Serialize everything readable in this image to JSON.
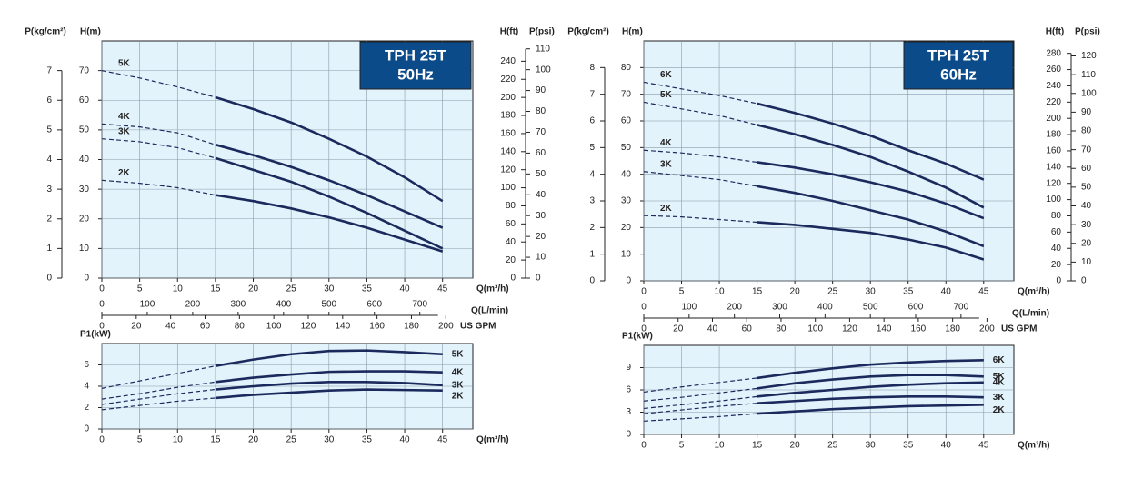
{
  "chart_data": [
    {
      "type": "line",
      "title": "TPH 25T",
      "subtitle": "50Hz",
      "xlabel": "Q(m³/h)",
      "ylabel": "H(m)",
      "x": [
        0,
        5,
        10,
        15,
        20,
        25,
        30,
        35,
        40,
        45
      ],
      "xlim": [
        0,
        49
      ],
      "xticks": [
        0,
        5,
        10,
        15,
        20,
        25,
        30,
        35,
        40,
        45
      ],
      "ylim": [
        0,
        80
      ],
      "yticks": [
        0,
        10,
        20,
        30,
        40,
        50,
        60,
        70
      ],
      "grid": true,
      "dashed_below_x": 15,
      "series": [
        {
          "name": "5K",
          "color": "#1b2a5c",
          "values": [
            70,
            67.5,
            64.5,
            61,
            57,
            52.5,
            47,
            41,
            34,
            26
          ]
        },
        {
          "name": "4K",
          "color": "#1b2a5c",
          "values": [
            52,
            51,
            49,
            45,
            41.5,
            37.5,
            33,
            28,
            22.5,
            17
          ]
        },
        {
          "name": "3K",
          "color": "#1b2a5c",
          "values": [
            47,
            46,
            44,
            40.5,
            36.5,
            32.5,
            27.5,
            22,
            16,
            10
          ]
        },
        {
          "name": "2K",
          "color": "#1b2a5c",
          "values": [
            33,
            32,
            30.5,
            28,
            26,
            23.5,
            20.5,
            17,
            13,
            9
          ]
        }
      ],
      "extra_axes": [
        {
          "label": "P(kg/cm²)",
          "side": "left",
          "lim": [
            0,
            8
          ],
          "ticks": [
            0,
            1,
            2,
            3,
            4,
            5,
            6,
            7
          ]
        },
        {
          "label": "H(ft)",
          "side": "right",
          "lim": [
            0,
            262.5
          ],
          "ticks": [
            0,
            20,
            40,
            60,
            80,
            100,
            120,
            140,
            160,
            180,
            200,
            220,
            240
          ]
        },
        {
          "label": "P(psi)",
          "side": "right",
          "lim": [
            0,
            113.8
          ],
          "ticks": [
            0,
            10,
            20,
            30,
            40,
            50,
            60,
            70,
            80,
            90,
            100,
            110
          ]
        },
        {
          "label": "Q(L/min)",
          "side": "bottom",
          "lim": [
            0,
            816.7
          ],
          "ticks": [
            0,
            100,
            200,
            300,
            400,
            500,
            600,
            700
          ]
        },
        {
          "label": "US GPM",
          "side": "bottom",
          "lim": [
            0,
            215.7
          ],
          "ticks": [
            0,
            20,
            40,
            60,
            80,
            100,
            120,
            140,
            160,
            180,
            200
          ]
        }
      ]
    },
    {
      "type": "line",
      "xlabel": "Q(m³/h)",
      "ylabel": "P1(kW)",
      "x": [
        0,
        5,
        10,
        15,
        20,
        25,
        30,
        35,
        40,
        45
      ],
      "xlim": [
        0,
        49
      ],
      "xticks": [
        0,
        5,
        10,
        15,
        20,
        25,
        30,
        35,
        40,
        45
      ],
      "ylim": [
        0,
        8
      ],
      "yticks": [
        0,
        2,
        4,
        6
      ],
      "grid": true,
      "dashed_below_x": 15,
      "series": [
        {
          "name": "5K",
          "color": "#1b2a5c",
          "values": [
            3.8,
            4.5,
            5.2,
            5.9,
            6.5,
            7.0,
            7.3,
            7.35,
            7.2,
            7.0
          ]
        },
        {
          "name": "4K",
          "color": "#1b2a5c",
          "values": [
            2.8,
            3.3,
            3.9,
            4.4,
            4.8,
            5.1,
            5.35,
            5.4,
            5.4,
            5.3
          ]
        },
        {
          "name": "3K",
          "color": "#1b2a5c",
          "values": [
            2.3,
            2.8,
            3.3,
            3.7,
            4.0,
            4.25,
            4.4,
            4.4,
            4.3,
            4.1
          ]
        },
        {
          "name": "2K",
          "color": "#1b2a5c",
          "values": [
            1.8,
            2.2,
            2.6,
            2.9,
            3.2,
            3.4,
            3.6,
            3.7,
            3.65,
            3.6
          ]
        }
      ]
    },
    {
      "type": "line",
      "title": "TPH 25T",
      "subtitle": "60Hz",
      "xlabel": "Q(m³/h)",
      "ylabel": "H(m)",
      "x": [
        0,
        5,
        10,
        15,
        20,
        25,
        30,
        35,
        40,
        45
      ],
      "xlim": [
        0,
        49
      ],
      "xticks": [
        0,
        5,
        10,
        15,
        20,
        25,
        30,
        35,
        40,
        45
      ],
      "ylim": [
        0,
        90
      ],
      "yticks": [
        0,
        10,
        20,
        30,
        40,
        50,
        60,
        70,
        80
      ],
      "grid": true,
      "dashed_below_x": 15,
      "series": [
        {
          "name": "6K",
          "color": "#1b2a5c",
          "values": [
            74.5,
            72,
            69.5,
            66.5,
            63,
            59,
            54.5,
            49,
            44,
            38
          ]
        },
        {
          "name": "5K",
          "color": "#1b2a5c",
          "values": [
            67,
            64.5,
            62,
            58.5,
            55,
            51,
            46.5,
            41,
            35,
            27.5
          ]
        },
        {
          "name": "4K",
          "color": "#1b2a5c",
          "values": [
            49,
            48,
            46.5,
            44.5,
            42.5,
            40,
            37,
            33.5,
            29,
            23.5
          ]
        },
        {
          "name": "3K",
          "color": "#1b2a5c",
          "values": [
            41,
            39.5,
            38,
            35.5,
            33,
            30,
            26.5,
            23,
            18.5,
            13
          ]
        },
        {
          "name": "2K",
          "color": "#1b2a5c",
          "values": [
            24.5,
            24,
            23,
            22,
            21,
            19.5,
            18,
            15.5,
            12.5,
            8
          ]
        }
      ],
      "extra_axes": [
        {
          "label": "P(kg/cm²)",
          "side": "left",
          "lim": [
            0,
            9
          ],
          "ticks": [
            0,
            1,
            2,
            3,
            4,
            5,
            6,
            7,
            8
          ]
        },
        {
          "label": "H(ft)",
          "side": "right",
          "lim": [
            0,
            295.3
          ],
          "ticks": [
            0,
            20,
            40,
            60,
            80,
            100,
            120,
            140,
            160,
            180,
            200,
            220,
            240,
            260,
            280
          ]
        },
        {
          "label": "P(psi)",
          "side": "right",
          "lim": [
            0,
            128
          ],
          "ticks": [
            0,
            10,
            20,
            30,
            40,
            50,
            60,
            70,
            80,
            90,
            100,
            110,
            120
          ]
        },
        {
          "label": "Q(L/min)",
          "side": "bottom",
          "lim": [
            0,
            816.7
          ],
          "ticks": [
            0,
            100,
            200,
            300,
            400,
            500,
            600,
            700
          ]
        },
        {
          "label": "US GPM",
          "side": "bottom",
          "lim": [
            0,
            215.7
          ],
          "ticks": [
            0,
            20,
            40,
            60,
            80,
            100,
            120,
            140,
            160,
            180,
            200
          ]
        }
      ]
    },
    {
      "type": "line",
      "xlabel": "Q(m³/h)",
      "ylabel": "P1(kW)",
      "x": [
        0,
        5,
        10,
        15,
        20,
        25,
        30,
        35,
        40,
        45
      ],
      "xlim": [
        0,
        49
      ],
      "xticks": [
        0,
        5,
        10,
        15,
        20,
        25,
        30,
        35,
        40,
        45
      ],
      "ylim": [
        0,
        12
      ],
      "yticks": [
        0,
        3,
        6,
        9
      ],
      "grid": true,
      "dashed_below_x": 15,
      "series": [
        {
          "name": "6K",
          "color": "#1b2a5c",
          "values": [
            5.7,
            6.4,
            7.0,
            7.6,
            8.3,
            8.9,
            9.4,
            9.7,
            9.9,
            10.0
          ]
        },
        {
          "name": "5K",
          "color": "#1b2a5c",
          "values": [
            4.5,
            5.0,
            5.6,
            6.2,
            6.9,
            7.4,
            7.8,
            8.0,
            8.0,
            7.8
          ]
        },
        {
          "name": "4K",
          "color": "#1b2a5c",
          "values": [
            3.5,
            4.0,
            4.5,
            5.1,
            5.6,
            6.0,
            6.4,
            6.7,
            6.9,
            7.0
          ]
        },
        {
          "name": "3K",
          "color": "#1b2a5c",
          "values": [
            2.8,
            3.3,
            3.8,
            4.2,
            4.5,
            4.8,
            5.0,
            5.1,
            5.1,
            5.0
          ]
        },
        {
          "name": "2K",
          "color": "#1b2a5c",
          "values": [
            1.8,
            2.1,
            2.4,
            2.8,
            3.1,
            3.4,
            3.6,
            3.8,
            3.9,
            4.0
          ]
        }
      ]
    }
  ]
}
